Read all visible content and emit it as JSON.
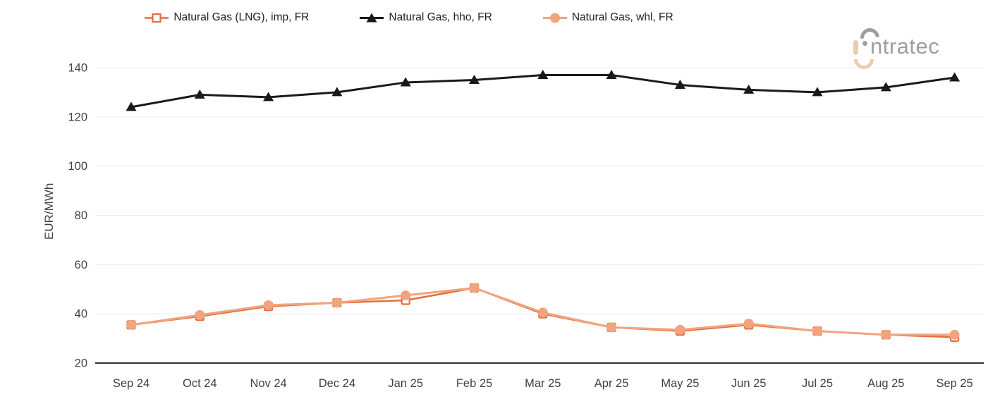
{
  "logo": {
    "brand": "intratec",
    "text_after_mark": "ntratec",
    "gray": "#9E9E9E",
    "peach": "#EBCDAF"
  },
  "colors": {
    "grid": "#ECECEC",
    "axis_line": "#333333",
    "tick_text": "#424242",
    "legend_text": "#212121",
    "background": "#FFFFFF"
  },
  "chart_data": {
    "type": "line",
    "title": "",
    "xlabel": "",
    "ylabel": "EUR/MWh",
    "ylim": [
      20,
      140
    ],
    "y_ticks": [
      20,
      40,
      60,
      80,
      100,
      120,
      140
    ],
    "grid": "horizontal",
    "legend_position": "top-center",
    "categories": [
      "Sep 24",
      "Oct 24",
      "Nov 24",
      "Dec 24",
      "Jan 25",
      "Feb 25",
      "Mar 25",
      "Apr 25",
      "May 25",
      "Jun 25",
      "Jul 25",
      "Aug 25",
      "Sep 25"
    ],
    "series": [
      {
        "name": "Natural Gas (LNG), imp, FR",
        "color": "#E2703A",
        "marker": "square",
        "marker_fill": "#FFFFFF",
        "line_width": 2.5,
        "values": [
          35.5,
          39,
          43,
          44.5,
          45.5,
          50.5,
          40,
          34.5,
          33,
          35.5,
          33,
          31.5,
          30.5
        ]
      },
      {
        "name": "Natural Gas, hho, FR",
        "color": "#1A1A1A",
        "marker": "triangle",
        "marker_fill": "#1A1A1A",
        "line_width": 3,
        "values": [
          124,
          129,
          128,
          130,
          134,
          135,
          137,
          137,
          133,
          131,
          130,
          132,
          136
        ]
      },
      {
        "name": "Natural Gas, whl, FR",
        "color": "#F2A47F",
        "marker": "circle",
        "marker_fill": "#F2A47F",
        "line_width": 3,
        "values": [
          35.5,
          39.5,
          43.5,
          44.5,
          47.5,
          50.5,
          40.5,
          34.5,
          33.5,
          36,
          33,
          31.5,
          31.5
        ]
      }
    ]
  }
}
